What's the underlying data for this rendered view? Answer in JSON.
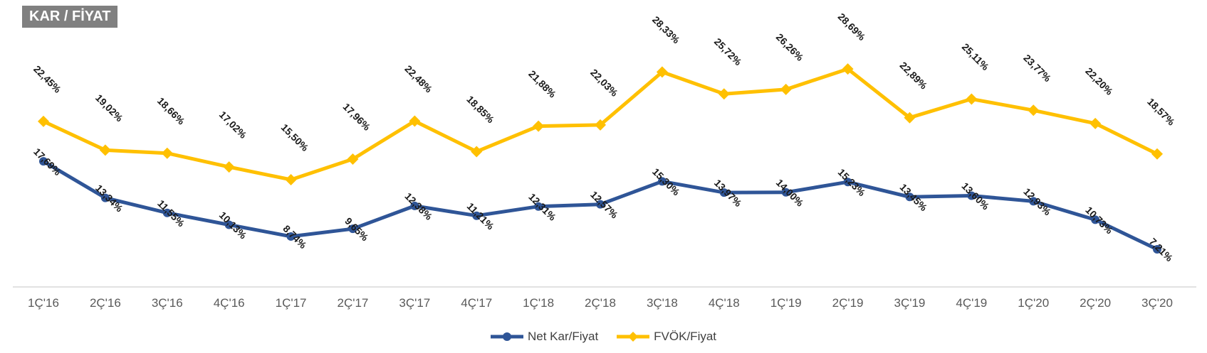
{
  "title": "KAR / FİYAT",
  "chart_data": {
    "type": "line",
    "categories": [
      "1Ç'16",
      "2Ç'16",
      "3Ç'16",
      "4Ç'16",
      "1Ç'17",
      "2Ç'17",
      "3Ç'17",
      "4Ç'17",
      "1Ç'18",
      "2Ç'18",
      "3Ç'18",
      "4Ç'18",
      "1Ç'19",
      "2Ç'19",
      "3Ç'19",
      "4Ç'19",
      "1Ç'20",
      "2Ç'20",
      "3Ç'20"
    ],
    "series": [
      {
        "name": "Net Kar/Fiyat",
        "color": "#2f5597",
        "values": [
          17.69,
          13.34,
          11.55,
          10.13,
          8.74,
          9.65,
          12.38,
          11.21,
          12.31,
          12.57,
          15.3,
          13.97,
          14.0,
          15.23,
          13.45,
          13.6,
          12.93,
          10.73,
          7.21
        ],
        "labels": [
          "17,69%",
          "13,34%",
          "11,55%",
          "10,13%",
          "8,74%",
          "9,65%",
          "12,38%",
          "11,21%",
          "12,31%",
          "12,57%",
          "15,30%",
          "13,97%",
          "14,00%",
          "15,23%",
          "13,45%",
          "13,60%",
          "12,93%",
          "10,73%",
          "7,21%"
        ]
      },
      {
        "name": "FVÖK/Fiyat",
        "color": "#ffc000",
        "values": [
          22.45,
          19.02,
          18.66,
          17.02,
          15.5,
          17.96,
          22.48,
          18.85,
          21.88,
          22.03,
          28.33,
          25.72,
          26.26,
          28.69,
          22.89,
          25.11,
          23.77,
          22.2,
          18.57
        ],
        "labels": [
          "22,45%",
          "19,02%",
          "18,66%",
          "17,02%",
          "15,50%",
          "17,96%",
          "22,48%",
          "18,85%",
          "21,88%",
          "22,03%",
          "28,33%",
          "25,72%",
          "26,26%",
          "28,69%",
          "22,89%",
          "25,11%",
          "23,77%",
          "22,20%",
          "18,57%"
        ]
      }
    ],
    "ylim": [
      0,
      35
    ],
    "grid": false,
    "legend": "bottom"
  }
}
